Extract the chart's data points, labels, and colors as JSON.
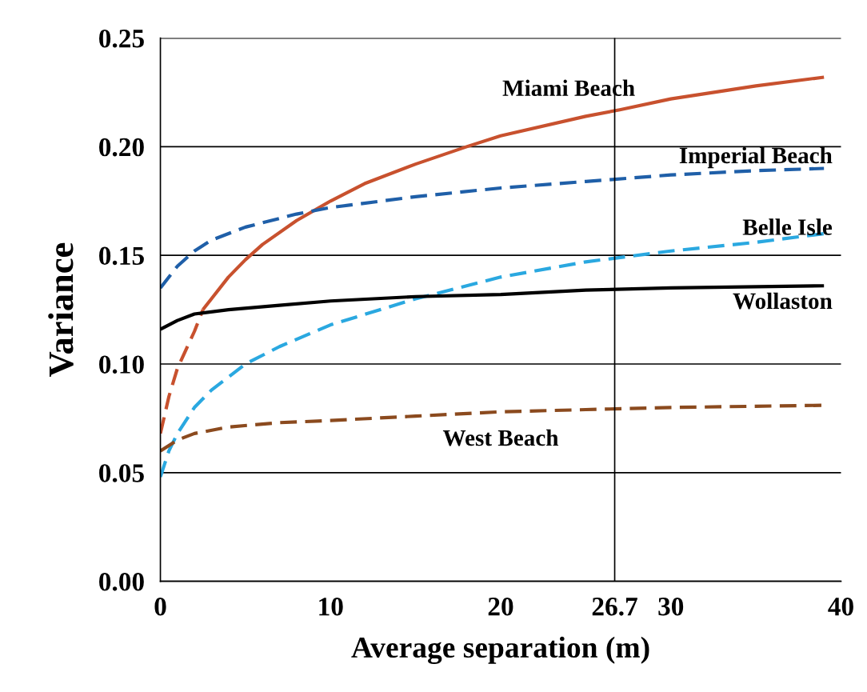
{
  "chart_data": {
    "type": "line",
    "xlabel": "Average separation (m)",
    "ylabel": "Variance",
    "xlim": [
      0,
      40
    ],
    "xticks": [
      0,
      10,
      20,
      {
        "value": 26.7,
        "label": "26.7"
      },
      30,
      40
    ],
    "ylim": [
      0,
      0.25
    ],
    "yticks": [
      {
        "value": 0,
        "label": "0.00"
      },
      {
        "value": 0.05,
        "label": "0.05"
      },
      {
        "value": 0.1,
        "label": "0.10"
      },
      {
        "value": 0.15,
        "label": "0.15"
      },
      {
        "value": 0.2,
        "label": "0.20"
      },
      {
        "value": 0.25,
        "label": "0.25"
      }
    ],
    "grid": "y",
    "legend": false,
    "marker": "none",
    "ref_lines": [
      {
        "axis": "x",
        "value": 26.7,
        "color": "#000000"
      }
    ],
    "series": [
      {
        "color": "#c8512e",
        "line_style": "dashed",
        "x": [
          0,
          0.5,
          1,
          2,
          2.5
        ],
        "values": [
          0.068,
          0.085,
          0.098,
          0.115,
          0.125
        ]
      },
      {
        "name": "Miami Beach",
        "color": "#c8512e",
        "line_style": "solid",
        "x": [
          2.5,
          3,
          4,
          5,
          6,
          8,
          10,
          12,
          15,
          18,
          20,
          25,
          27,
          30,
          35,
          39
        ],
        "values": [
          0.125,
          0.13,
          0.14,
          0.148,
          0.155,
          0.166,
          0.175,
          0.183,
          0.192,
          0.2,
          0.205,
          0.214,
          0.217,
          0.222,
          0.228,
          0.232
        ]
      },
      {
        "name": "Imperial Beach",
        "color": "#1f5fa8",
        "line_style": "dashed",
        "x": [
          0,
          1,
          2,
          3,
          5,
          8,
          10,
          15,
          20,
          25,
          30,
          35,
          39
        ],
        "values": [
          0.135,
          0.145,
          0.152,
          0.157,
          0.163,
          0.169,
          0.172,
          0.177,
          0.181,
          0.184,
          0.187,
          0.189,
          0.19
        ]
      },
      {
        "name": "Belle Isle",
        "color": "#2aa8e0",
        "line_style": "dashed",
        "x": [
          0,
          0.5,
          1,
          2,
          3,
          5,
          7,
          10,
          15,
          20,
          25,
          30,
          35,
          39
        ],
        "values": [
          0.048,
          0.06,
          0.068,
          0.08,
          0.088,
          0.1,
          0.108,
          0.118,
          0.13,
          0.14,
          0.147,
          0.152,
          0.156,
          0.16
        ]
      },
      {
        "name": "Wollaston",
        "color": "#000000",
        "line_style": "solid",
        "x": [
          0,
          1,
          2,
          4,
          7,
          10,
          15,
          20,
          25,
          30,
          39
        ],
        "values": [
          0.116,
          0.12,
          0.123,
          0.125,
          0.127,
          0.129,
          0.131,
          0.132,
          0.134,
          0.135,
          0.136
        ]
      },
      {
        "name": "West Beach",
        "color": "#8b4a1e",
        "line_style": "dashed",
        "x": [
          0,
          1,
          2,
          4,
          7,
          10,
          15,
          20,
          25,
          30,
          39
        ],
        "values": [
          0.06,
          0.065,
          0.068,
          0.071,
          0.073,
          0.074,
          0.076,
          0.078,
          0.079,
          0.08,
          0.081
        ]
      }
    ]
  }
}
